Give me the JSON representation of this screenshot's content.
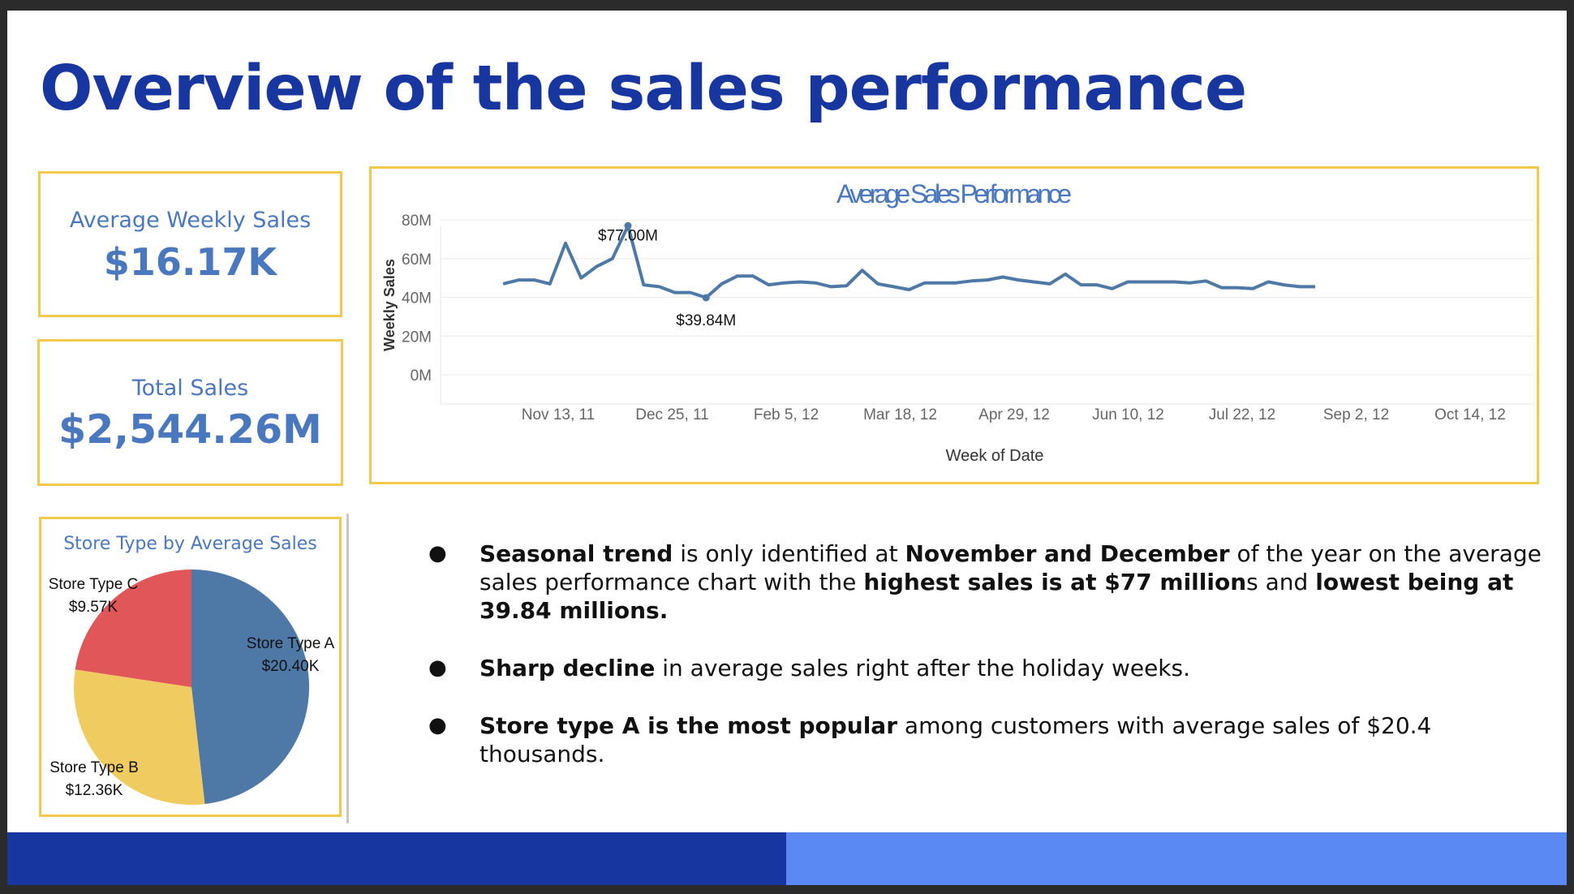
{
  "title": "Overview of the sales performance",
  "kpis": {
    "weekly": {
      "label": "Average Weekly Sales",
      "value": "$16.17K"
    },
    "total": {
      "label": "Total Sales",
      "value": "$2,544.26M"
    }
  },
  "colors": {
    "title": "#1736a0",
    "kpi_text": "#4a78bf",
    "box_border": "#f2c94c",
    "line": "#4e79a7",
    "footer_left": "#1736a0",
    "footer_right": "#5b89f4",
    "pie": [
      "#4e79a7",
      "#f0cc60",
      "#e15759"
    ]
  },
  "chart_data": [
    {
      "type": "line",
      "title": "Average Sales Performance",
      "xlabel": "Week of Date",
      "ylabel": "Weekly Sales",
      "yticks": [
        "80M",
        "60M",
        "40M",
        "20M",
        "0M"
      ],
      "xticks": [
        "Nov 13, 11",
        "Dec 25, 11",
        "Feb 5, 12",
        "Mar 18, 12",
        "Apr 29, 12",
        "Jun 10, 12",
        "Jul 22, 12",
        "Sep 2, 12",
        "Oct 14, 12"
      ],
      "ylim": [
        0,
        85
      ],
      "grid": true,
      "series": [
        {
          "values": [
            47,
            49,
            49,
            47,
            68,
            50,
            56,
            60,
            77,
            46.5,
            45.5,
            42.5,
            42.5,
            39.84,
            47,
            51,
            51,
            46.5,
            47.5,
            48,
            47.5,
            45.5,
            46,
            54,
            47,
            45.5,
            44,
            47.5,
            47.5,
            47.5,
            48.5,
            49,
            50.5,
            49,
            48,
            47,
            52,
            46.5,
            46.5,
            44.5,
            48,
            48,
            48,
            48,
            47.5,
            48.5,
            45,
            45,
            44.5,
            48,
            46.5,
            45.5,
            45.5
          ]
        }
      ],
      "annotations": [
        {
          "text": "$77.00M",
          "index": 8,
          "value": 77
        },
        {
          "text": "$39.84M",
          "index": 13,
          "value": 39.84
        }
      ]
    },
    {
      "type": "pie",
      "title": "Store Type by Average Sales",
      "slices": [
        {
          "name": "Store Type A",
          "label": "$20.40K",
          "value": 20.4
        },
        {
          "name": "Store Type B",
          "label": "$12.36K",
          "value": 12.36
        },
        {
          "name": "Store Type C",
          "label": "$9.57K",
          "value": 9.57
        }
      ]
    }
  ],
  "bullets": [
    {
      "parts": [
        {
          "text": "Seasonal trend",
          "bold": true
        },
        {
          "text": " is only identified at ",
          "bold": false
        },
        {
          "text": "November and December",
          "bold": true
        },
        {
          "text": " of the year on the average sales performance chart with the ",
          "bold": false
        },
        {
          "text": "highest sales is at $77 million",
          "bold": true
        },
        {
          "text": "s and ",
          "bold": false
        },
        {
          "text": "lowest being at 39.84 millions.",
          "bold": true
        }
      ]
    },
    {
      "parts": [
        {
          "text": "Sharp decline",
          "bold": true
        },
        {
          "text": " in average sales right after the holiday weeks.",
          "bold": false
        }
      ]
    },
    {
      "parts": [
        {
          "text": "Store type A is the most popular",
          "bold": true
        },
        {
          "text": " among customers with average sales of $20.4 thousands.",
          "bold": false
        }
      ]
    }
  ]
}
